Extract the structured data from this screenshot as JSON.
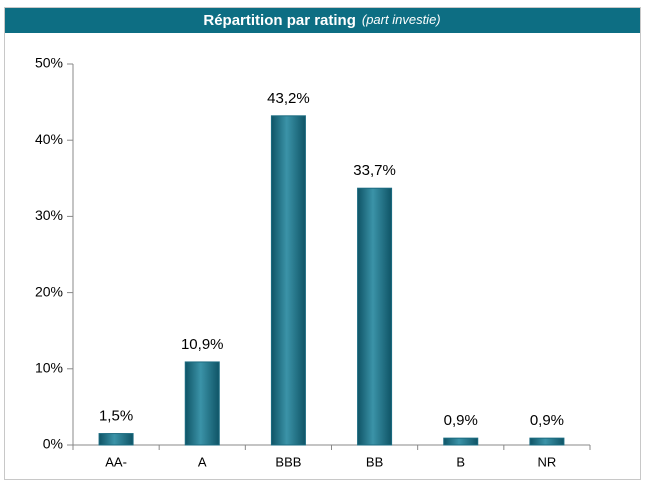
{
  "chart_data": {
    "type": "bar",
    "title": "Répartition par rating",
    "subtitle": "(part investie)",
    "categories": [
      "AA-",
      "A",
      "BBB",
      "BB",
      "B",
      "NR"
    ],
    "values": [
      1.5,
      10.9,
      43.2,
      33.7,
      0.9,
      0.9
    ],
    "value_labels": [
      "1,5%",
      "10,9%",
      "43,2%",
      "33,7%",
      "0,9%",
      "0,9%"
    ],
    "color": "#1b6b80",
    "ylim": [
      0,
      50
    ],
    "yticks": [
      {
        "value": 0,
        "label": "0%"
      },
      {
        "value": 10,
        "label": "10%"
      },
      {
        "value": 20,
        "label": "20%"
      },
      {
        "value": 30,
        "label": "30%"
      },
      {
        "value": 40,
        "label": "40%"
      },
      {
        "value": 50,
        "label": "50%"
      }
    ],
    "grid": false
  }
}
